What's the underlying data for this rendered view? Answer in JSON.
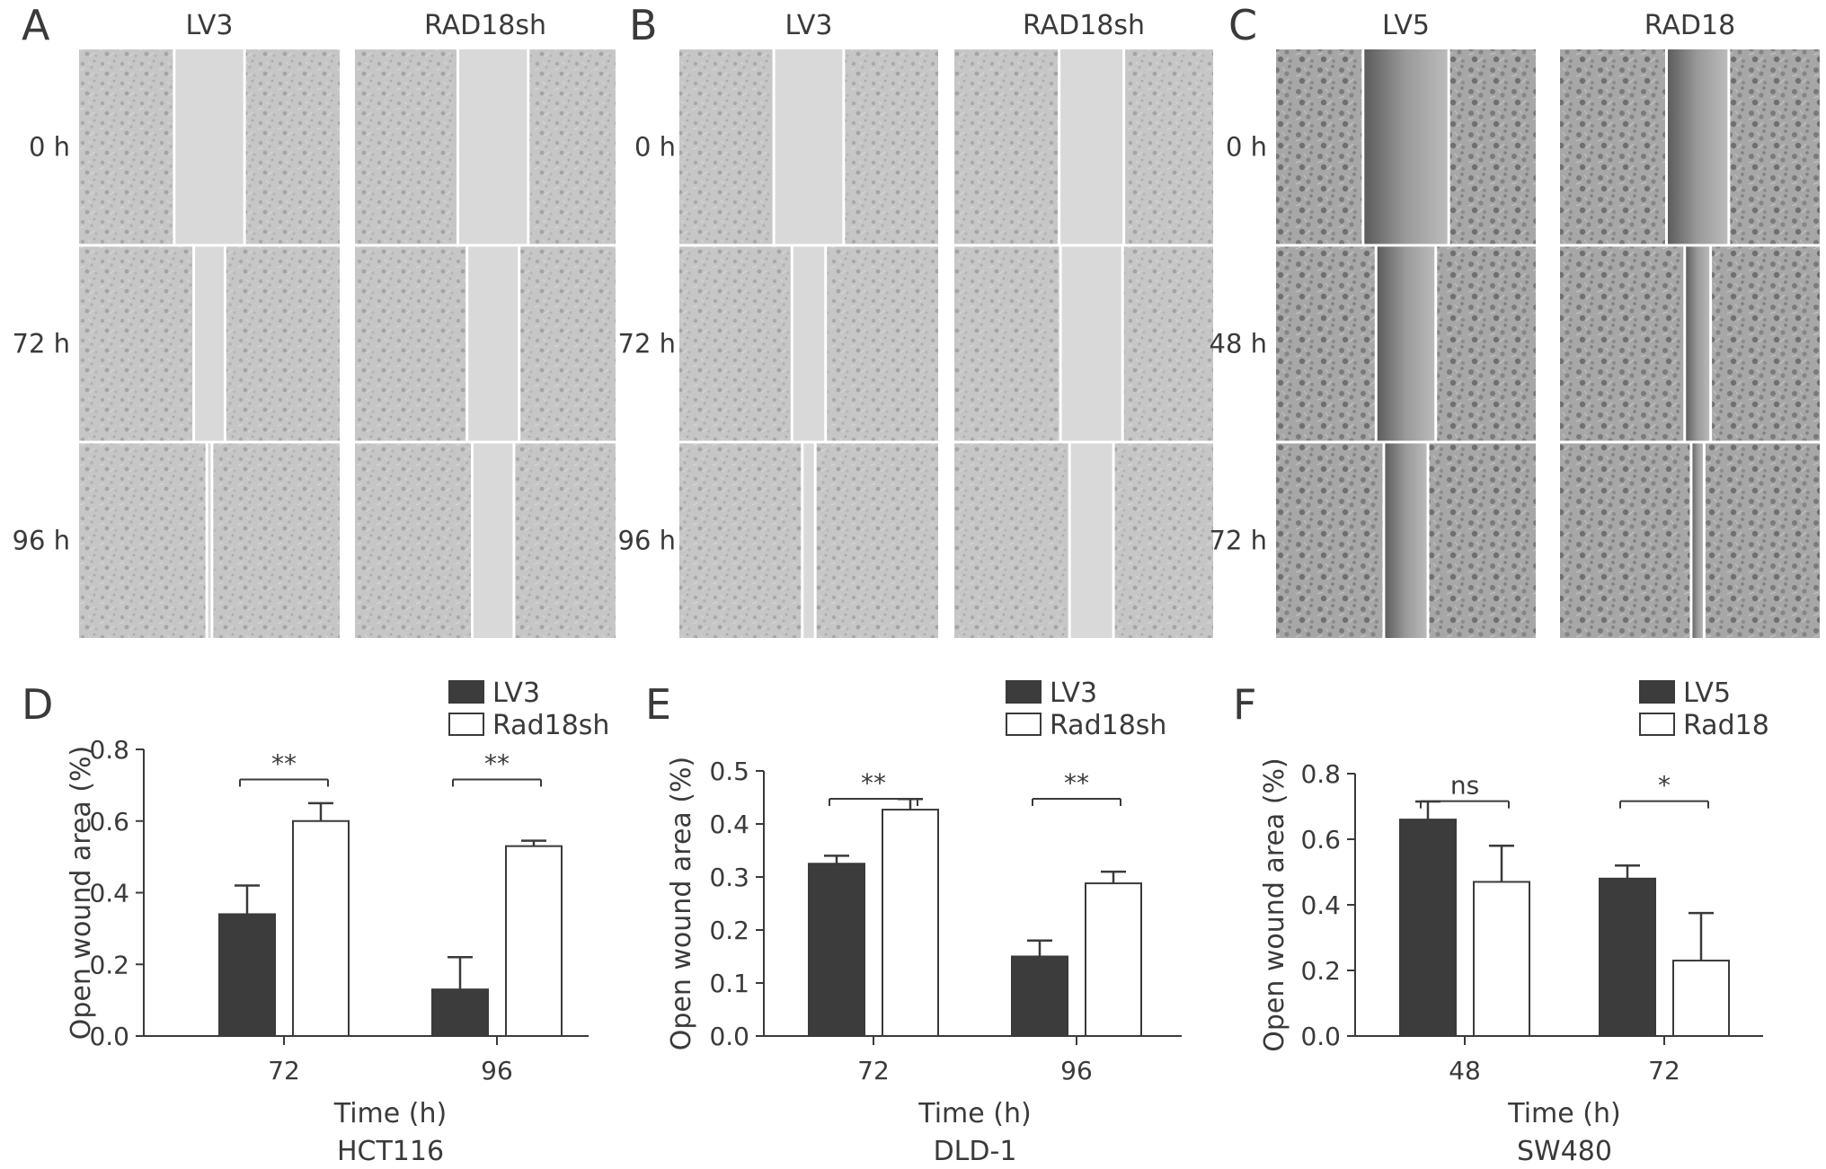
{
  "colors": {
    "dark_bar": "#3c3c3c",
    "light_bar": "#ffffff",
    "axis": "#3a3a3a",
    "micro_bg": "#c4c4c4",
    "micro_gap": "#d9d9d9"
  },
  "micrographs": [
    {
      "panel": "A",
      "columns": [
        "LV3",
        "RAD18sh"
      ],
      "rows": [
        "0 h",
        "72 h",
        "96 h"
      ],
      "gaps": [
        [
          0.27,
          0.27
        ],
        [
          0.12,
          0.2
        ],
        [
          0.02,
          0.16
        ]
      ],
      "style": "light"
    },
    {
      "panel": "B",
      "columns": [
        "LV3",
        "RAD18sh"
      ],
      "rows": [
        "0 h",
        "72 h",
        "96 h"
      ],
      "gaps": [
        [
          0.27,
          0.25
        ],
        [
          0.13,
          0.24
        ],
        [
          0.05,
          0.17
        ]
      ],
      "style": "light"
    },
    {
      "panel": "C",
      "columns": [
        "LV5",
        "RAD18"
      ],
      "rows": [
        "0 h",
        "48 h",
        "72 h"
      ],
      "gaps": [
        [
          0.33,
          0.24
        ],
        [
          0.23,
          0.1
        ],
        [
          0.17,
          0.05
        ]
      ],
      "style": "dark"
    }
  ],
  "chart_data": [
    {
      "panel": "D",
      "type": "bar",
      "xlabel": "Time (h)",
      "ylabel": "Open wound area (%)",
      "cell_line": "HCT116",
      "categories": [
        "72",
        "96"
      ],
      "ylim": [
        0,
        0.8
      ],
      "yticks": [
        "0.0",
        "0.2",
        "0.4",
        "0.6",
        "0.8"
      ],
      "series": [
        {
          "name": "LV3",
          "values": [
            0.34,
            0.13
          ],
          "errors": [
            0.08,
            0.09
          ]
        },
        {
          "name": "Rad18sh",
          "values": [
            0.6,
            0.53
          ],
          "errors": [
            0.05,
            0.015
          ]
        }
      ],
      "significance": [
        "**",
        "**"
      ],
      "legend": "top-right"
    },
    {
      "panel": "E",
      "type": "bar",
      "xlabel": "Time (h)",
      "ylabel": "Open wound area (%)",
      "cell_line": "DLD-1",
      "categories": [
        "72",
        "96"
      ],
      "ylim": [
        0,
        0.5
      ],
      "yticks": [
        "0.0",
        "0.1",
        "0.2",
        "0.3",
        "0.4",
        "0.5"
      ],
      "series": [
        {
          "name": "LV3",
          "values": [
            0.325,
            0.15
          ],
          "errors": [
            0.015,
            0.03
          ]
        },
        {
          "name": "Rad18sh",
          "values": [
            0.427,
            0.288
          ],
          "errors": [
            0.02,
            0.022
          ]
        }
      ],
      "significance": [
        "**",
        "**"
      ],
      "legend": "top-right"
    },
    {
      "panel": "F",
      "type": "bar",
      "xlabel": "Time (h)",
      "ylabel": "Open wound area (%)",
      "cell_line": "SW480",
      "categories": [
        "48",
        "72"
      ],
      "ylim": [
        0,
        0.8
      ],
      "yticks": [
        "0.0",
        "0.2",
        "0.4",
        "0.6",
        "0.8"
      ],
      "series": [
        {
          "name": "LV5",
          "values": [
            0.66,
            0.48
          ],
          "errors": [
            0.055,
            0.04
          ]
        },
        {
          "name": "Rad18",
          "values": [
            0.47,
            0.23
          ],
          "errors": [
            0.11,
            0.145
          ]
        }
      ],
      "significance": [
        "ns",
        "*"
      ],
      "legend": "top-right"
    }
  ]
}
